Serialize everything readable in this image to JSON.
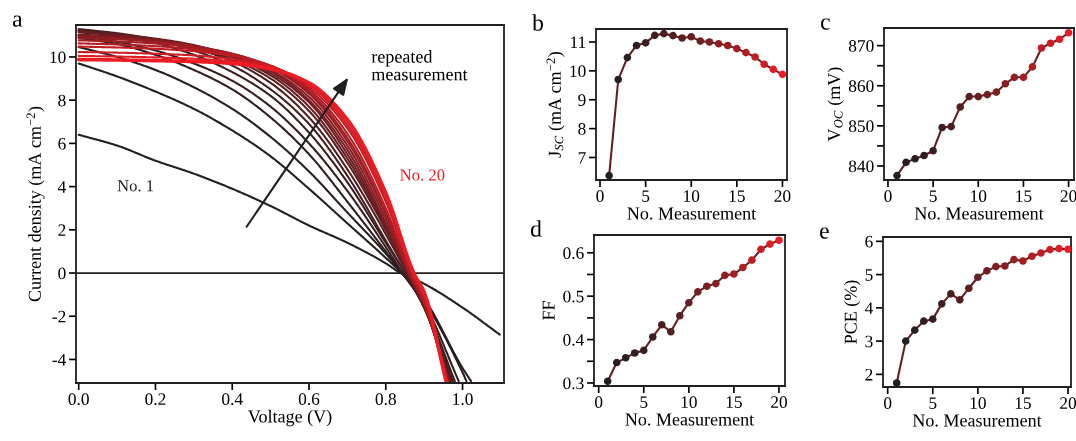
{
  "chart_data": [
    {
      "type": "line",
      "title": "a",
      "xlabel": "Voltage (V)",
      "ylabel": "Current density (mA cm$^{−2}$)",
      "xlim": [
        -0.007,
        1.108
      ],
      "ylim": [
        -5.09,
        11.48
      ],
      "xticks": [
        {
          "value": 0,
          "label": "0.0"
        },
        0.2,
        0.4,
        0.6,
        0.8,
        {
          "value": 1,
          "label": "1.0"
        }
      ],
      "yticks": [
        -4,
        -2,
        0,
        2,
        4,
        6,
        8,
        10
      ],
      "marker": "none",
      "legend": false,
      "grid": false,
      "ref_lines": [
        {
          "axis": "y",
          "value": 0
        }
      ],
      "annotations": [
        "repeated\nmeasurement"
      ],
      "series": [
        {
          "name": "No. 1",
          "color": "#231f20",
          "x": [
            0,
            0.1,
            0.2,
            0.3,
            0.4,
            0.5,
            0.6,
            0.7,
            0.8,
            0.838,
            0.9,
            1.0,
            1.097
          ],
          "values": [
            6.4,
            5.9,
            5.2,
            4.6,
            3.9,
            3.1,
            2.2,
            1.4,
            0.45,
            0,
            -0.5,
            -1.6,
            -2.85
          ]
        },
        {
          "color": "#251f20",
          "x": [
            0,
            0.1,
            0.2,
            0.3,
            0.4,
            0.5,
            0.6,
            0.7,
            0.8,
            0.841,
            0.9,
            1.0,
            1.022
          ],
          "values": [
            9.7,
            9.1,
            8.4,
            7.6,
            6.6,
            5.4,
            3.9,
            2.3,
            0.7,
            0,
            -1.2,
            -4.4,
            -5.0
          ]
        },
        {
          "color": "#2a1f20",
          "x": [
            0,
            0.1,
            0.2,
            0.3,
            0.4,
            0.5,
            0.6,
            0.7,
            0.8,
            0.842,
            0.9,
            1.0,
            1.01
          ],
          "values": [
            10.46,
            10.0,
            9.4,
            8.6,
            7.6,
            6.3,
            4.7,
            2.8,
            0.9,
            0,
            -1.3,
            -4.6,
            -5.0
          ]
        },
        {
          "color": "#301f20",
          "x": [
            0,
            0.1,
            0.2,
            0.3,
            0.4,
            0.5,
            0.6,
            0.7,
            0.8,
            0.843,
            0.9,
            0.99
          ],
          "values": [
            10.88,
            10.6,
            10.1,
            9.4,
            8.5,
            7.2,
            5.5,
            3.3,
            1.0,
            0,
            -1.4,
            -5.0
          ]
        },
        {
          "color": "#371f20",
          "x": [
            0,
            0.1,
            0.2,
            0.3,
            0.4,
            0.5,
            0.6,
            0.7,
            0.8,
            0.844,
            0.9,
            0.98
          ],
          "values": [
            10.97,
            10.7,
            10.3,
            9.7,
            8.9,
            7.7,
            6.0,
            3.8,
            1.2,
            0,
            -1.5,
            -5.0
          ]
        },
        {
          "color": "#3e1f20",
          "x": [
            0,
            0.1,
            0.2,
            0.3,
            0.4,
            0.5,
            0.6,
            0.7,
            0.8,
            0.85,
            0.9,
            0.975
          ],
          "values": [
            11.23,
            11.0,
            10.65,
            10.1,
            9.3,
            8.2,
            6.5,
            4.2,
            1.4,
            0,
            -1.6,
            -5.0
          ]
        },
        {
          "color": "#471f21",
          "x": [
            0,
            0.1,
            0.2,
            0.3,
            0.4,
            0.5,
            0.6,
            0.7,
            0.8,
            0.85,
            0.9,
            0.972
          ],
          "values": [
            11.29,
            11.1,
            10.8,
            10.3,
            9.6,
            8.5,
            6.9,
            4.5,
            1.5,
            0,
            -1.6,
            -5.0
          ]
        },
        {
          "color": "#501f21",
          "x": [
            0,
            0.1,
            0.2,
            0.3,
            0.4,
            0.5,
            0.6,
            0.7,
            0.8,
            0.855,
            0.9,
            0.97
          ],
          "values": [
            11.22,
            11.05,
            10.8,
            10.4,
            9.8,
            8.8,
            7.2,
            4.8,
            1.8,
            0,
            -1.6,
            -5.0
          ]
        },
        {
          "color": "#5a1f21",
          "x": [
            0,
            0.1,
            0.2,
            0.3,
            0.4,
            0.5,
            0.6,
            0.7,
            0.8,
            0.857,
            0.9,
            0.968
          ],
          "values": [
            11.14,
            11.0,
            10.8,
            10.45,
            9.9,
            9.0,
            7.5,
            5.1,
            2.0,
            0,
            -1.5,
            -5.0
          ]
        },
        {
          "color": "#651e21",
          "x": [
            0,
            0.1,
            0.2,
            0.3,
            0.4,
            0.5,
            0.6,
            0.7,
            0.8,
            0.857,
            0.9,
            0.966
          ],
          "values": [
            11.18,
            11.05,
            10.85,
            10.55,
            10.0,
            9.15,
            7.7,
            5.3,
            2.1,
            0,
            -1.5,
            -5.0
          ]
        },
        {
          "color": "#701e22",
          "x": [
            0,
            0.1,
            0.2,
            0.3,
            0.4,
            0.5,
            0.6,
            0.7,
            0.8,
            0.858,
            0.9,
            0.965
          ],
          "values": [
            11.03,
            10.95,
            10.8,
            10.5,
            10.05,
            9.25,
            7.9,
            5.5,
            2.2,
            0,
            -1.5,
            -5.0
          ]
        },
        {
          "color": "#7c1e22",
          "x": [
            0,
            0.1,
            0.2,
            0.3,
            0.4,
            0.5,
            0.6,
            0.7,
            0.8,
            0.858,
            0.9,
            0.964
          ],
          "values": [
            11.0,
            10.92,
            10.78,
            10.52,
            10.1,
            9.35,
            8.0,
            5.7,
            2.3,
            0,
            -1.5,
            -5.0
          ]
        },
        {
          "color": "#881e22",
          "x": [
            0,
            0.1,
            0.2,
            0.3,
            0.4,
            0.5,
            0.6,
            0.7,
            0.8,
            0.861,
            0.9,
            0.963
          ],
          "values": [
            10.94,
            10.88,
            10.75,
            10.5,
            10.1,
            9.4,
            8.15,
            5.9,
            2.5,
            0,
            -1.4,
            -5.0
          ]
        },
        {
          "color": "#951e22",
          "x": [
            0,
            0.1,
            0.2,
            0.3,
            0.4,
            0.5,
            0.6,
            0.7,
            0.8,
            0.862,
            0.9,
            0.962
          ],
          "values": [
            10.88,
            10.82,
            10.7,
            10.5,
            10.15,
            9.5,
            8.3,
            6.1,
            2.7,
            0,
            -1.4,
            -5.0
          ]
        },
        {
          "color": "#a31d23",
          "x": [
            0,
            0.1,
            0.2,
            0.3,
            0.4,
            0.5,
            0.6,
            0.7,
            0.8,
            0.862,
            0.9,
            0.961
          ],
          "values": [
            10.77,
            10.72,
            10.62,
            10.45,
            10.15,
            9.55,
            8.4,
            6.25,
            2.8,
            0,
            -1.4,
            -5.0
          ]
        },
        {
          "color": "#b11d23",
          "x": [
            0,
            0.1,
            0.2,
            0.3,
            0.4,
            0.5,
            0.6,
            0.7,
            0.8,
            0.865,
            0.9,
            0.96
          ],
          "values": [
            10.63,
            10.58,
            10.5,
            10.36,
            10.1,
            9.6,
            8.5,
            6.45,
            3.0,
            0,
            -1.3,
            -5.0
          ]
        },
        {
          "color": "#bf1d23",
          "x": [
            0,
            0.1,
            0.2,
            0.3,
            0.4,
            0.5,
            0.6,
            0.7,
            0.8,
            0.869,
            0.9,
            0.959
          ],
          "values": [
            10.48,
            10.44,
            10.38,
            10.27,
            10.05,
            9.6,
            8.6,
            6.7,
            3.3,
            0,
            -1.1,
            -5.0
          ]
        },
        {
          "color": "#ce1d23",
          "x": [
            0,
            0.1,
            0.2,
            0.3,
            0.4,
            0.5,
            0.6,
            0.7,
            0.8,
            0.871,
            0.9,
            0.958
          ],
          "values": [
            10.23,
            10.2,
            10.15,
            10.07,
            9.9,
            9.55,
            8.7,
            6.85,
            3.5,
            0,
            -1.0,
            -5.0
          ]
        },
        {
          "color": "#dd1c24",
          "x": [
            0,
            0.1,
            0.2,
            0.3,
            0.4,
            0.5,
            0.6,
            0.7,
            0.8,
            0.872,
            0.9,
            0.958
          ],
          "values": [
            10.05,
            10.02,
            9.98,
            9.92,
            9.8,
            9.5,
            8.75,
            7.0,
            3.6,
            0,
            -1.0,
            -5.0
          ]
        },
        {
          "name": "No. 20",
          "color": "#ed1c24",
          "x": [
            0,
            0.1,
            0.2,
            0.3,
            0.4,
            0.5,
            0.6,
            0.7,
            0.8,
            0.873,
            0.9,
            0.957
          ],
          "values": [
            9.88,
            9.86,
            9.83,
            9.79,
            9.7,
            9.45,
            8.8,
            7.1,
            3.7,
            0,
            -0.9,
            -5.0
          ]
        }
      ]
    },
    {
      "type": "line",
      "title": "b",
      "xlabel": "No. Measurement",
      "ylabel": "J$_{SC}$ (mA cm$^{−2}$)",
      "xlim": [
        -0.44,
        20.5
      ],
      "ylim": [
        6.22,
        11.45
      ],
      "xticks": [
        0,
        5,
        10,
        15,
        20
      ],
      "yticks": [
        7,
        8,
        9,
        10,
        11
      ],
      "marker": "circle",
      "legend": false,
      "grid": false,
      "x": [
        1,
        2,
        3,
        4,
        5,
        6,
        7,
        8,
        9,
        10,
        11,
        12,
        13,
        14,
        15,
        16,
        17,
        18,
        19,
        20
      ],
      "series": [
        {
          "colors": [
            "#231f20",
            "#251f20",
            "#2a1f20",
            "#301f20",
            "#371f20",
            "#3e1f20",
            "#471f21",
            "#501f21",
            "#5a1f21",
            "#651e21",
            "#701e22",
            "#7c1e22",
            "#881e22",
            "#951e22",
            "#a31d23",
            "#b11d23",
            "#bf1d23",
            "#ce1d23",
            "#dd1c24",
            "#ed1c24"
          ],
          "values": [
            6.37,
            9.7,
            10.46,
            10.88,
            10.97,
            11.23,
            11.29,
            11.22,
            11.14,
            11.18,
            11.03,
            11.0,
            10.94,
            10.88,
            10.77,
            10.63,
            10.48,
            10.23,
            10.05,
            9.88
          ]
        }
      ]
    },
    {
      "type": "line",
      "title": "c",
      "xlabel": "No. Measurement",
      "ylabel": "V$_{OC}$ (mV)",
      "xlim": [
        -0.44,
        20.6
      ],
      "ylim": [
        836.5,
        874.4
      ],
      "xticks": [
        0,
        5,
        10,
        15,
        20
      ],
      "yticks": [
        840,
        {
          "value": 845,
          "label": null
        },
        850,
        {
          "value": 855,
          "label": null
        },
        860,
        {
          "value": 865,
          "label": null
        },
        870
      ],
      "marker": "circle",
      "legend": false,
      "grid": false,
      "x": [
        1,
        2,
        3,
        4,
        5,
        6,
        7,
        8,
        9,
        10,
        11,
        12,
        13,
        14,
        15,
        16,
        17,
        18,
        19,
        20
      ],
      "series": [
        {
          "colors": [
            "#231f20",
            "#251f20",
            "#2a1f20",
            "#301f20",
            "#371f20",
            "#3e1f20",
            "#471f21",
            "#501f21",
            "#5a1f21",
            "#651e21",
            "#701e22",
            "#7c1e22",
            "#881e22",
            "#951e22",
            "#a31d23",
            "#b11d23",
            "#bf1d23",
            "#ce1d23",
            "#dd1c24",
            "#ed1c24"
          ],
          "values": [
            837.6,
            840.9,
            841.8,
            842.6,
            843.8,
            849.6,
            849.8,
            854.7,
            857.3,
            857.3,
            857.8,
            858.4,
            860.5,
            862.1,
            862.1,
            864.7,
            869.4,
            870.6,
            871.6,
            873.2
          ]
        }
      ]
    },
    {
      "type": "line",
      "title": "d",
      "xlabel": "No. Measurement",
      "ylabel": "FF",
      "xlim": [
        -0.52,
        20.67
      ],
      "ylim": [
        0.293,
        0.641
      ],
      "xticks": [
        0,
        5,
        10,
        15,
        20
      ],
      "yticks": [
        0.3,
        {
          "value": 0.35,
          "label": null
        },
        0.4,
        {
          "value": 0.45,
          "label": null
        },
        0.5,
        {
          "value": 0.55,
          "label": null
        },
        0.6
      ],
      "marker": "circle",
      "legend": false,
      "grid": false,
      "x": [
        1,
        2,
        3,
        4,
        5,
        6,
        7,
        8,
        9,
        10,
        11,
        12,
        13,
        14,
        15,
        16,
        17,
        18,
        19,
        20
      ],
      "series": [
        {
          "colors": [
            "#231f20",
            "#251f20",
            "#2a1f20",
            "#301f20",
            "#371f20",
            "#3e1f20",
            "#471f21",
            "#501f21",
            "#5a1f21",
            "#651e21",
            "#701e22",
            "#7c1e22",
            "#881e22",
            "#951e22",
            "#a31d23",
            "#b11d23",
            "#bf1d23",
            "#ce1d23",
            "#dd1c24",
            "#ed1c24"
          ],
          "values": [
            0.304,
            0.347,
            0.358,
            0.369,
            0.375,
            0.406,
            0.434,
            0.418,
            0.455,
            0.485,
            0.51,
            0.523,
            0.529,
            0.548,
            0.551,
            0.566,
            0.583,
            0.608,
            0.62,
            0.629
          ]
        }
      ]
    },
    {
      "type": "line",
      "title": "e",
      "xlabel": "No. Measurement",
      "ylabel": "PCE (%)",
      "xlim": [
        -0.52,
        20.33
      ],
      "ylim": [
        1.62,
        6.13
      ],
      "xticks": [
        0,
        5,
        10,
        15,
        20
      ],
      "yticks": [
        2,
        3,
        4,
        5,
        6
      ],
      "marker": "circle",
      "legend": false,
      "grid": false,
      "x": [
        1,
        2,
        3,
        4,
        5,
        6,
        7,
        8,
        9,
        10,
        11,
        12,
        13,
        14,
        15,
        16,
        17,
        18,
        19,
        20
      ],
      "series": [
        {
          "colors": [
            "#231f20",
            "#251f20",
            "#2a1f20",
            "#301f20",
            "#371f20",
            "#3e1f20",
            "#471f21",
            "#501f21",
            "#5a1f21",
            "#651e21",
            "#701e22",
            "#7c1e22",
            "#881e22",
            "#951e22",
            "#a31d23",
            "#b11d23",
            "#bf1d23",
            "#ce1d23",
            "#dd1c24",
            "#ed1c24"
          ],
          "values": [
            1.74,
            3.0,
            3.33,
            3.6,
            3.66,
            4.12,
            4.42,
            4.24,
            4.59,
            4.92,
            5.11,
            5.24,
            5.26,
            5.45,
            5.41,
            5.55,
            5.65,
            5.75,
            5.78,
            5.76
          ]
        }
      ]
    }
  ]
}
